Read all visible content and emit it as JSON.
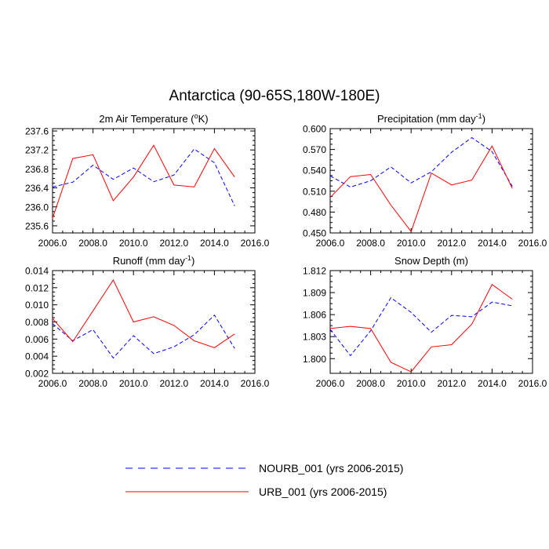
{
  "figure": {
    "title": "Antarctica (90-65S,180W-180E)"
  },
  "legend": {
    "entries": [
      {
        "label": "NOURB_001 (yrs 2006-2015)",
        "color": "#0000ff",
        "style": "dashed"
      },
      {
        "label": "URB_001 (yrs 2006-2015)",
        "color": "#ff0000",
        "style": "solid"
      }
    ]
  },
  "chart_data": [
    {
      "type": "line",
      "title": "2m Air Temperature (",
      "title_sup": "o",
      "title_suffix": "K)",
      "xlim": [
        2006,
        2016
      ],
      "ylim": [
        235.45,
        237.65
      ],
      "xticks": [
        2006,
        2008,
        2010,
        2012,
        2014,
        2016
      ],
      "xtick_labels": [
        "2006.0",
        "2008.0",
        "2010.0",
        "2012.0",
        "2014.0",
        "2016.0"
      ],
      "yticks": [
        235.6,
        236.0,
        236.4,
        236.8,
        237.2,
        237.6
      ],
      "ytick_labels": [
        "235.6",
        "236.0",
        "236.4",
        "236.8",
        "237.2",
        "237.6"
      ],
      "x": [
        2006,
        2007,
        2008,
        2009,
        2010,
        2011,
        2012,
        2013,
        2014,
        2015
      ],
      "series": [
        {
          "name": "NOURB_001 (yrs 2006-2015)",
          "color": "#0000ff",
          "style": "dashed",
          "values": [
            236.42,
            236.52,
            236.88,
            236.58,
            236.82,
            236.53,
            236.67,
            237.22,
            236.93,
            236.02
          ]
        },
        {
          "name": "URB_001 (yrs 2006-2015)",
          "color": "#ff0000",
          "style": "solid",
          "values": [
            235.76,
            237.02,
            237.1,
            236.13,
            236.63,
            237.3,
            236.46,
            236.42,
            237.23,
            236.63
          ]
        }
      ]
    },
    {
      "type": "line",
      "title": "Precipitation (mm day",
      "title_sup": "-1",
      "title_suffix": ")",
      "xlim": [
        2006,
        2016
      ],
      "ylim": [
        0.45,
        0.6
      ],
      "xticks": [
        2006,
        2008,
        2010,
        2012,
        2014,
        2016
      ],
      "xtick_labels": [
        "2006.0",
        "2008.0",
        "2010.0",
        "2012.0",
        "2014.0",
        "2016.0"
      ],
      "yticks": [
        0.45,
        0.48,
        0.51,
        0.54,
        0.57,
        0.6
      ],
      "ytick_labels": [
        "0.450",
        "0.480",
        "0.510",
        "0.540",
        "0.570",
        "0.600"
      ],
      "x": [
        2006,
        2007,
        2008,
        2009,
        2010,
        2011,
        2012,
        2013,
        2014,
        2015
      ],
      "series": [
        {
          "name": "NOURB_001 (yrs 2006-2015)",
          "color": "#0000ff",
          "style": "dashed",
          "values": [
            0.532,
            0.516,
            0.525,
            0.545,
            0.522,
            0.538,
            0.566,
            0.587,
            0.567,
            0.517
          ]
        },
        {
          "name": "URB_001 (yrs 2006-2015)",
          "color": "#ff0000",
          "style": "solid",
          "values": [
            0.501,
            0.531,
            0.534,
            0.49,
            0.452,
            0.536,
            0.519,
            0.526,
            0.575,
            0.514
          ]
        }
      ]
    },
    {
      "type": "line",
      "title": "Runoff (mm day",
      "title_sup": "-1",
      "title_suffix": ")",
      "xlim": [
        2006,
        2016
      ],
      "ylim": [
        0.002,
        0.014
      ],
      "xticks": [
        2006,
        2008,
        2010,
        2012,
        2014,
        2016
      ],
      "xtick_labels": [
        "2006.0",
        "2008.0",
        "2010.0",
        "2012.0",
        "2014.0",
        "2016.0"
      ],
      "yticks": [
        0.002,
        0.004,
        0.006,
        0.008,
        0.01,
        0.012,
        0.014
      ],
      "ytick_labels": [
        "0.002",
        "0.004",
        "0.006",
        "0.008",
        "0.010",
        "0.012",
        "0.014"
      ],
      "x": [
        2006,
        2007,
        2008,
        2009,
        2010,
        2011,
        2012,
        2013,
        2014,
        2015
      ],
      "series": [
        {
          "name": "NOURB_001 (yrs 2006-2015)",
          "color": "#0000ff",
          "style": "dashed",
          "values": [
            0.0078,
            0.0058,
            0.0071,
            0.0038,
            0.0064,
            0.0043,
            0.0051,
            0.0065,
            0.0088,
            0.0049
          ]
        },
        {
          "name": "URB_001 (yrs 2006-2015)",
          "color": "#ff0000",
          "style": "solid",
          "values": [
            0.0084,
            0.0057,
            0.0093,
            0.0129,
            0.008,
            0.0086,
            0.0076,
            0.0058,
            0.005,
            0.0066
          ]
        }
      ]
    },
    {
      "type": "line",
      "title": "Snow Depth (m)",
      "title_sup": "",
      "title_suffix": "",
      "xlim": [
        2006,
        2016
      ],
      "ylim": [
        1.798,
        1.812
      ],
      "xticks": [
        2006,
        2008,
        2010,
        2012,
        2014,
        2016
      ],
      "xtick_labels": [
        "2006.0",
        "2008.0",
        "2010.0",
        "2012.0",
        "2014.0",
        "2016.0"
      ],
      "yticks": [
        1.8,
        1.803,
        1.806,
        1.809,
        1.812
      ],
      "ytick_labels": [
        "1.800",
        "1.803",
        "1.806",
        "1.809",
        "1.812"
      ],
      "x": [
        2006,
        2007,
        2008,
        2009,
        2010,
        2011,
        2012,
        2013,
        2014,
        2015
      ],
      "series": [
        {
          "name": "NOURB_001 (yrs 2006-2015)",
          "color": "#0000ff",
          "style": "dashed",
          "values": [
            1.804,
            1.8004,
            1.8038,
            1.8083,
            1.8063,
            1.8036,
            1.8059,
            1.8057,
            1.8077,
            1.8072
          ]
        },
        {
          "name": "URB_001 (yrs 2006-2015)",
          "color": "#ff0000",
          "style": "solid",
          "values": [
            1.8041,
            1.8044,
            1.8041,
            1.7995,
            1.7982,
            1.8016,
            1.8019,
            1.8047,
            1.8101,
            1.8081
          ]
        }
      ]
    }
  ]
}
